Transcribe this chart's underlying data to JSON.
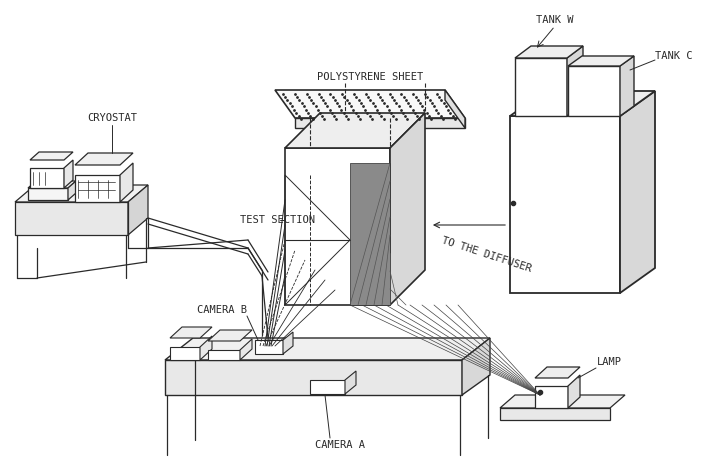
{
  "background_color": "#ffffff",
  "line_color": "#2a2a2a",
  "labels": {
    "cryostat": "CRYOSTAT",
    "polystyrene": "POLYSTYRENE SHEET",
    "test_section": "TEST SECTION",
    "camera_b": "CAMERA B",
    "camera_a": "CAMERA A",
    "tank_w": "TANK W",
    "tank_c": "TANK C",
    "lamp": "LAMP",
    "diffuser": "TO THE DIFFUSER"
  },
  "figsize": [
    7.05,
    4.66
  ],
  "dpi": 100
}
